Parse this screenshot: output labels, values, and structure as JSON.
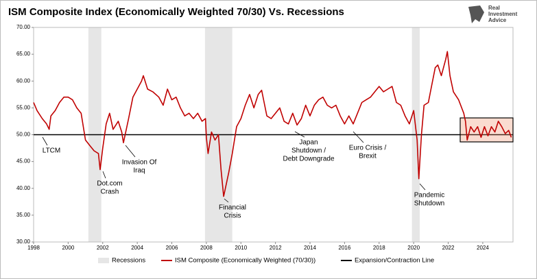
{
  "chart_data": {
    "type": "line",
    "title": "ISM Composite Index (Economically Weighted 70/30) Vs. Recessions",
    "logo": [
      "Real",
      "Investment",
      "Advice"
    ],
    "xlim": [
      1998,
      2025.75
    ],
    "xticks": [
      1998,
      2000,
      2002,
      2004,
      2006,
      2008,
      2010,
      2012,
      2014,
      2016,
      2018,
      2020,
      2022,
      2024
    ],
    "ylim": [
      30,
      70
    ],
    "yticks": [
      {
        "value": 30,
        "label": "30.00"
      },
      {
        "value": 35,
        "label": "35.00"
      },
      {
        "value": 40,
        "label": "40.00"
      },
      {
        "value": 45,
        "label": "45.00"
      },
      {
        "value": 50,
        "label": "50.00"
      },
      {
        "value": 55,
        "label": "55.00"
      },
      {
        "value": 60,
        "label": "60.00"
      },
      {
        "value": 65,
        "label": "65.00"
      },
      {
        "value": 70,
        "label": "70.00"
      }
    ],
    "shaded_regions": {
      "name": "Recessions",
      "color": "#e6e6e6",
      "ranges": [
        [
          2001.17,
          2001.92
        ],
        [
          2007.92,
          2009.5
        ],
        [
          2019.9,
          2020.35
        ]
      ]
    },
    "reference_line": {
      "name": "Expansion/Contraction Line",
      "value": 50,
      "color": "#000000"
    },
    "x": [
      1998.0,
      1998.2,
      1998.5,
      1998.75,
      1998.9,
      1999.0,
      1999.25,
      1999.5,
      1999.75,
      2000.0,
      2000.25,
      2000.5,
      2000.75,
      2001.0,
      2001.25,
      2001.5,
      2001.75,
      2001.85,
      2002.0,
      2002.2,
      2002.4,
      2002.6,
      2002.9,
      2003.1,
      2003.2,
      2003.5,
      2003.75,
      2004.0,
      2004.25,
      2004.35,
      2004.6,
      2004.9,
      2005.25,
      2005.5,
      2005.75,
      2006.0,
      2006.25,
      2006.5,
      2006.75,
      2007.0,
      2007.25,
      2007.5,
      2007.75,
      2007.95,
      2008.0,
      2008.1,
      2008.3,
      2008.5,
      2008.7,
      2008.85,
      2009.0,
      2009.1,
      2009.3,
      2009.5,
      2009.75,
      2010.0,
      2010.25,
      2010.5,
      2010.75,
      2011.0,
      2011.2,
      2011.5,
      2011.75,
      2012.0,
      2012.25,
      2012.5,
      2012.75,
      2013.0,
      2013.25,
      2013.5,
      2013.75,
      2014.0,
      2014.25,
      2014.5,
      2014.75,
      2015.0,
      2015.25,
      2015.5,
      2015.75,
      2016.0,
      2016.25,
      2016.5,
      2016.75,
      2017.0,
      2017.25,
      2017.5,
      2017.75,
      2018.0,
      2018.25,
      2018.5,
      2018.75,
      2019.0,
      2019.25,
      2019.5,
      2019.75,
      2020.0,
      2020.2,
      2020.3,
      2020.45,
      2020.6,
      2020.85,
      2021.0,
      2021.25,
      2021.4,
      2021.6,
      2021.85,
      2021.95,
      2022.1,
      2022.3,
      2022.6,
      2022.9,
      2023.0,
      2023.1,
      2023.3,
      2023.5,
      2023.7,
      2023.9,
      2024.1,
      2024.3,
      2024.5,
      2024.7,
      2024.9,
      2025.1,
      2025.3,
      2025.5,
      2025.65
    ],
    "series": [
      {
        "name": "ISM Composite (Economically Weighted (70/30))",
        "color": "#c00000",
        "values": [
          56,
          54.5,
          53,
          52,
          51,
          53.5,
          54.5,
          56,
          57,
          57,
          56.5,
          55,
          54,
          49,
          48,
          47,
          46.5,
          43.5,
          47.5,
          52,
          54,
          51,
          52.5,
          50.5,
          48.5,
          53,
          57,
          58.5,
          60,
          61,
          58.5,
          58,
          57,
          55.5,
          58.5,
          56.5,
          57,
          55,
          53.5,
          54,
          53,
          54,
          52.5,
          53,
          49.5,
          46.5,
          50.5,
          49,
          50,
          43.5,
          38.5,
          40,
          43,
          46.5,
          51.5,
          53,
          55.5,
          57.5,
          55,
          57.5,
          58.3,
          53.5,
          53,
          54,
          55,
          52.5,
          52,
          54,
          51.8,
          53,
          55.5,
          53.5,
          55.5,
          56.5,
          57,
          55.5,
          55,
          55.5,
          53.5,
          52,
          53.5,
          52,
          54,
          56,
          56.5,
          57,
          58,
          59,
          58,
          58.5,
          59,
          56,
          55.5,
          53.5,
          52,
          54.5,
          49,
          41.8,
          50,
          55.5,
          56,
          58.5,
          62.5,
          63,
          61,
          64,
          65.5,
          61,
          58,
          56.5,
          54,
          52.5,
          49,
          51.5,
          50.5,
          51.5,
          49.5,
          51.5,
          49.8,
          51.5,
          50.5,
          52.5,
          51.5,
          50.2,
          50.8,
          49.5
        ]
      }
    ],
    "annotations": [
      [
        "LTCM"
      ],
      [
        "Dot.com",
        "Crash"
      ],
      [
        "Invasion Of",
        "Iraq"
      ],
      [
        "Financial",
        "Crisis"
      ],
      [
        "Japan",
        "Shutdown /",
        "Debt Downgrade"
      ],
      [
        "Euro Crisis /",
        "Brexit"
      ],
      [
        "Pandemic",
        "Shutdown"
      ]
    ],
    "grid": false
  }
}
